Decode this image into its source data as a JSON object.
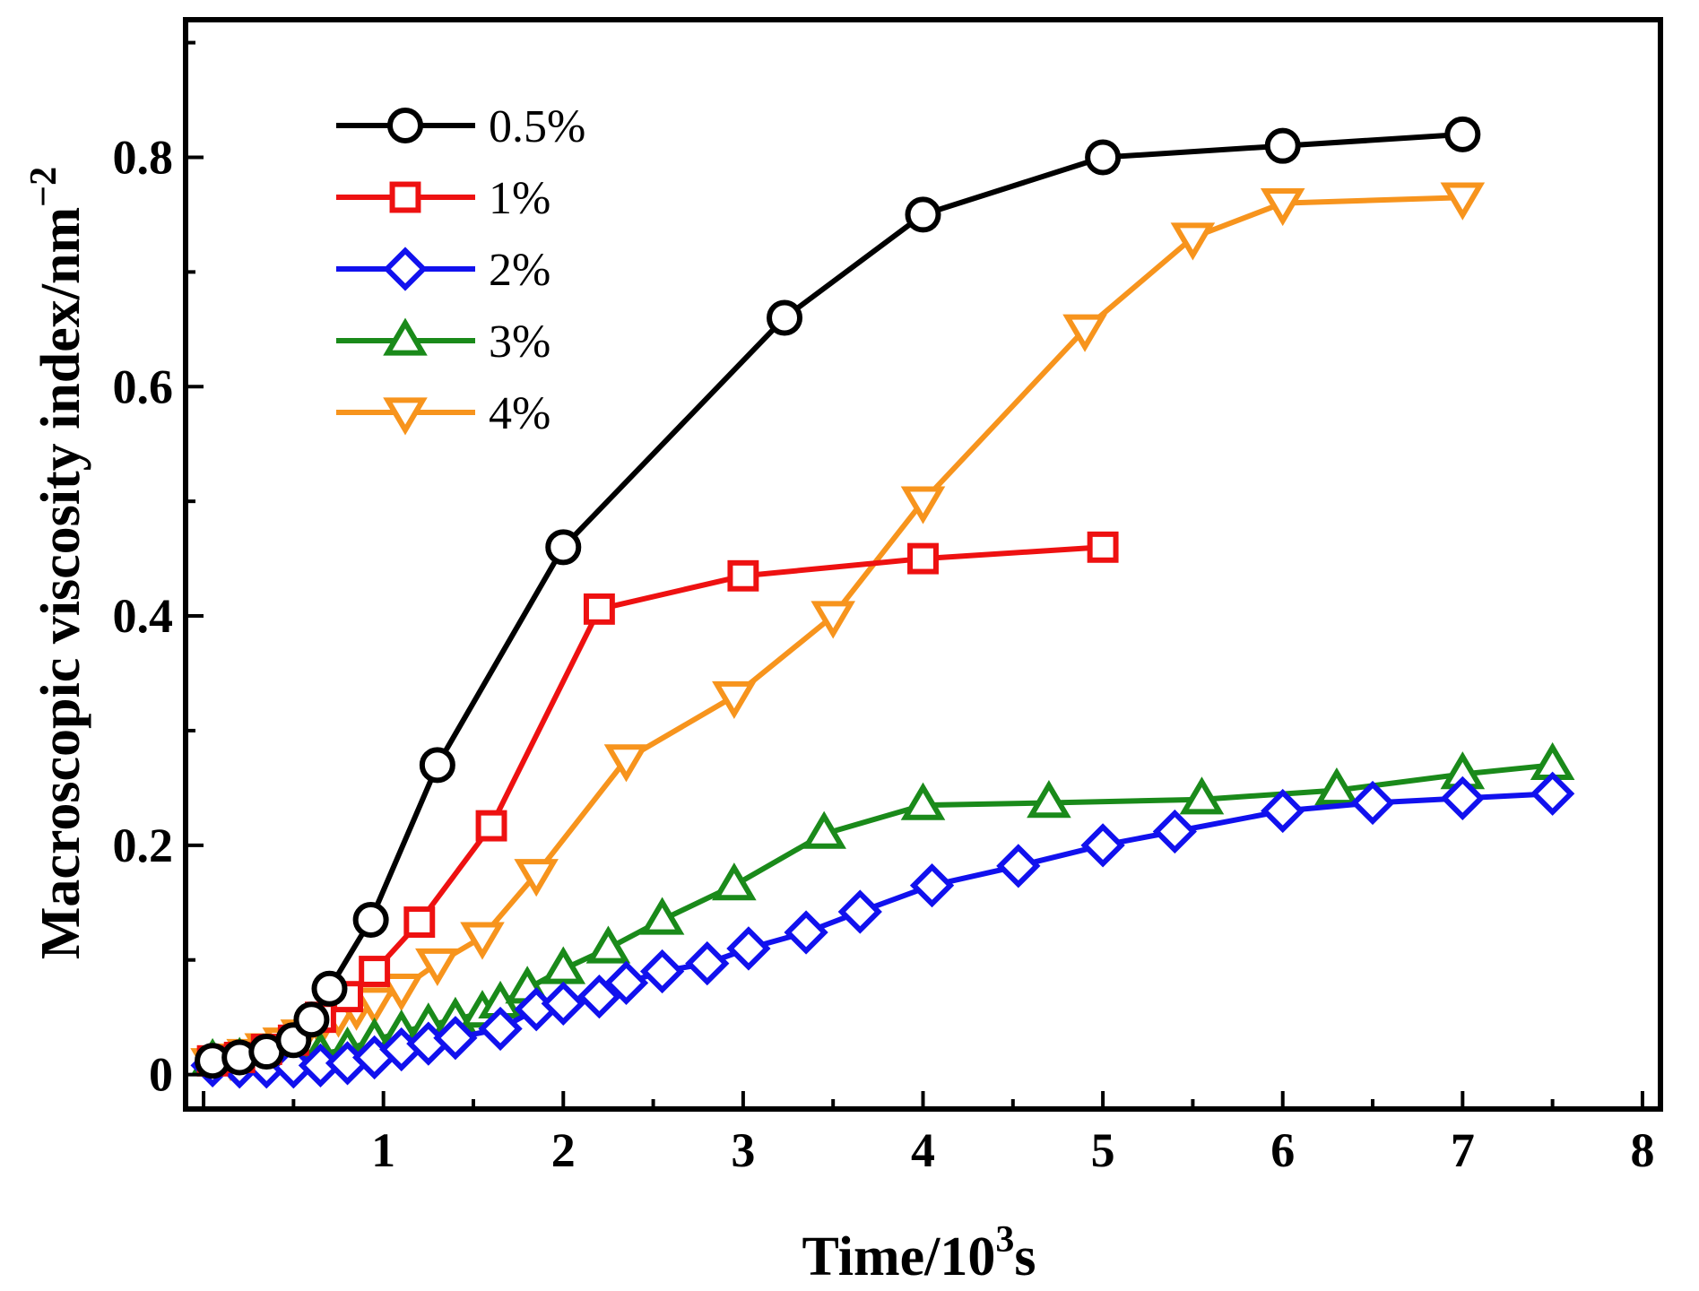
{
  "chart_data": {
    "type": "line",
    "title": "",
    "xlabel": "Time/10",
    "xlabel_sup": "3",
    "xlabel_suffix": "s",
    "ylabel": "Macroscopic viscosity index/nm",
    "ylabel_sup": "−2",
    "xlim": [
      -0.1,
      8.1
    ],
    "ylim": [
      -0.03,
      0.92
    ],
    "xticks": [
      1,
      2,
      3,
      4,
      5,
      6,
      7,
      8
    ],
    "xtick_labels": [
      "1",
      "2",
      "3",
      "4",
      "5",
      "6",
      "7",
      "8"
    ],
    "yticks": [
      0,
      0.2,
      0.4,
      0.6,
      0.8
    ],
    "ytick_labels": [
      "0",
      "0.2",
      "0.4",
      "0.6",
      "0.8"
    ],
    "legend_position": "top-left",
    "series": [
      {
        "name": "0.5%",
        "color": "#000000",
        "marker": "circle",
        "x": [
          0.05,
          0.2,
          0.35,
          0.5,
          0.6,
          0.7,
          0.93,
          1.3,
          2.0,
          3.23,
          4.0,
          5.0,
          6.0,
          7.0
        ],
        "y": [
          0.012,
          0.015,
          0.02,
          0.03,
          0.048,
          0.075,
          0.135,
          0.27,
          0.46,
          0.66,
          0.75,
          0.8,
          0.81,
          0.82
        ]
      },
      {
        "name": "1%",
        "color": "#ee1111",
        "marker": "square",
        "x": [
          0.05,
          0.2,
          0.35,
          0.5,
          0.65,
          0.8,
          0.95,
          1.2,
          1.6,
          2.2,
          3.0,
          4.0,
          5.0
        ],
        "y": [
          0.012,
          0.015,
          0.022,
          0.03,
          0.05,
          0.068,
          0.09,
          0.133,
          0.217,
          0.406,
          0.435,
          0.45,
          0.46
        ]
      },
      {
        "name": "2%",
        "color": "#1111ee",
        "marker": "diamond",
        "x": [
          0.05,
          0.2,
          0.35,
          0.5,
          0.65,
          0.8,
          0.95,
          1.1,
          1.25,
          1.4,
          1.65,
          1.85,
          2.0,
          2.2,
          2.35,
          2.55,
          2.8,
          3.03,
          3.35,
          3.65,
          4.05,
          4.53,
          5.0,
          5.4,
          6.0,
          6.5,
          7.0,
          7.5
        ],
        "y": [
          0.008,
          0.007,
          0.007,
          0.007,
          0.008,
          0.01,
          0.015,
          0.022,
          0.027,
          0.032,
          0.04,
          0.057,
          0.062,
          0.068,
          0.08,
          0.09,
          0.097,
          0.11,
          0.124,
          0.142,
          0.165,
          0.182,
          0.2,
          0.212,
          0.23,
          0.237,
          0.241,
          0.245
        ]
      },
      {
        "name": "3%",
        "color": "#1a8a1a",
        "marker": "triangle-up",
        "x": [
          0.05,
          0.2,
          0.35,
          0.5,
          0.65,
          0.8,
          0.95,
          1.1,
          1.25,
          1.4,
          1.55,
          1.65,
          1.8,
          2.0,
          2.25,
          2.55,
          2.95,
          3.45,
          4.0,
          4.7,
          5.55,
          6.3,
          7.0,
          7.5
        ],
        "y": [
          0.012,
          0.013,
          0.013,
          0.015,
          0.018,
          0.022,
          0.03,
          0.037,
          0.043,
          0.048,
          0.054,
          0.062,
          0.075,
          0.092,
          0.11,
          0.135,
          0.165,
          0.21,
          0.235,
          0.237,
          0.24,
          0.248,
          0.262,
          0.27
        ]
      },
      {
        "name": "4%",
        "color": "#f7941d",
        "marker": "triangle-down",
        "x": [
          0.05,
          0.15,
          0.25,
          0.35,
          0.45,
          0.55,
          0.65,
          0.75,
          0.85,
          0.95,
          1.1,
          1.3,
          1.55,
          1.85,
          2.35,
          2.95,
          3.5,
          4.0,
          4.9,
          5.5,
          6.0,
          7.0
        ],
        "y": [
          0.01,
          0.014,
          0.018,
          0.023,
          0.028,
          0.035,
          0.043,
          0.052,
          0.058,
          0.063,
          0.075,
          0.097,
          0.12,
          0.175,
          0.275,
          0.33,
          0.4,
          0.5,
          0.65,
          0.73,
          0.76,
          0.765
        ]
      }
    ]
  }
}
